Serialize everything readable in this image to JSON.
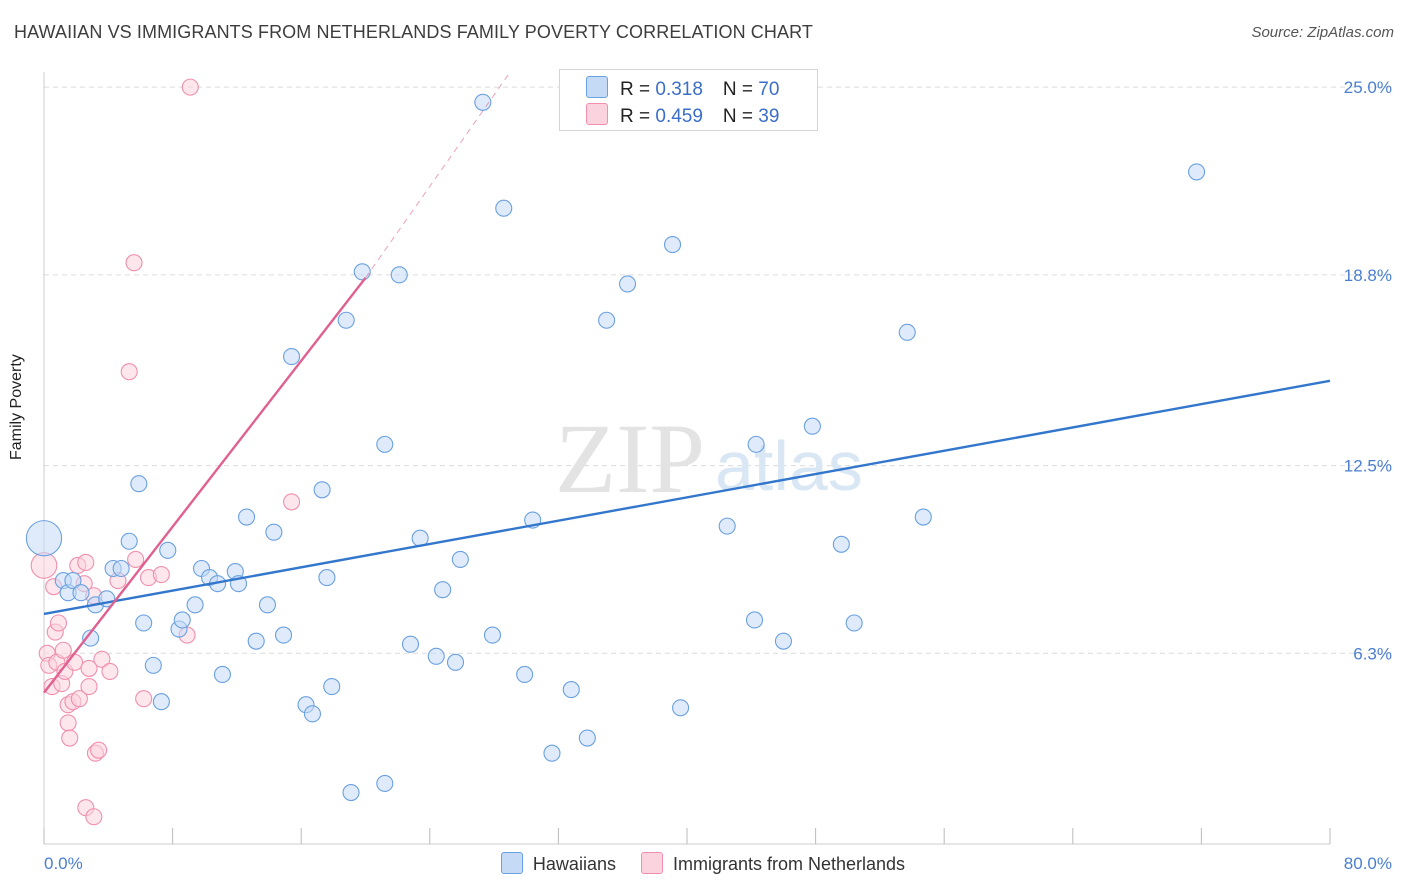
{
  "title": "HAWAIIAN VS IMMIGRANTS FROM NETHERLANDS FAMILY POVERTY CORRELATION CHART",
  "source": "Source: ZipAtlas.com",
  "watermark_zip": "ZIP",
  "watermark_atlas": "atlas",
  "colors": {
    "hawaiians": "#6aa0e0",
    "hawaiians_fill": "#c5daf5",
    "netherlands": "#f08fae",
    "netherlands_fill": "#fbd3df",
    "blue_line": "#3377cc",
    "pink_line": "#e06090",
    "tick_text": "#4a7fd0"
  },
  "legend": {
    "row1": {
      "r_label": "R = ",
      "r_value": "0.318",
      "n_label": "N = ",
      "n_value": "70"
    },
    "row2": {
      "r_label": "R = ",
      "r_value": "0.459",
      "n_label": "N = ",
      "n_value": "39"
    }
  },
  "bottom_legend": {
    "hawaiians": "Hawaiians",
    "netherlands": "Immigrants from Netherlands"
  },
  "chart_data": {
    "type": "scatter",
    "ylabel": "Family Poverty",
    "xlim": [
      0,
      80
    ],
    "ylim": [
      0,
      25.5
    ],
    "x_tick_labels": [
      "0.0%",
      "80.0%"
    ],
    "y_ticks": [
      6.3,
      12.5,
      18.8,
      25.0
    ],
    "y_tick_labels": [
      "6.3%",
      "12.5%",
      "18.8%",
      "25.0%"
    ],
    "grid": true,
    "legend_position": "top-center",
    "series": [
      {
        "name": "Hawaiians",
        "r": 0.318,
        "n": 70,
        "trend": {
          "x": [
            0,
            80
          ],
          "y": [
            7.6,
            15.3
          ]
        },
        "points": [
          [
            0.0,
            10.1,
            2.2
          ],
          [
            1.2,
            8.7,
            1
          ],
          [
            1.5,
            8.3,
            1
          ],
          [
            1.8,
            8.7,
            1
          ],
          [
            2.3,
            8.3,
            1
          ],
          [
            2.9,
            6.8,
            1
          ],
          [
            3.2,
            7.9,
            1
          ],
          [
            3.9,
            8.1,
            1
          ],
          [
            4.3,
            9.1,
            1
          ],
          [
            4.8,
            9.1,
            1
          ],
          [
            5.3,
            10.0,
            1
          ],
          [
            5.9,
            11.9,
            1
          ],
          [
            6.2,
            7.3,
            1
          ],
          [
            6.8,
            5.9,
            1
          ],
          [
            7.3,
            4.7,
            1
          ],
          [
            7.7,
            9.7,
            1
          ],
          [
            8.4,
            7.1,
            1
          ],
          [
            8.6,
            7.4,
            1
          ],
          [
            9.4,
            7.9,
            1
          ],
          [
            9.8,
            9.1,
            1
          ],
          [
            10.3,
            8.8,
            1
          ],
          [
            10.8,
            8.6,
            1
          ],
          [
            11.1,
            5.6,
            1
          ],
          [
            11.9,
            9.0,
            1
          ],
          [
            12.1,
            8.6,
            1
          ],
          [
            12.6,
            10.8,
            1
          ],
          [
            13.2,
            6.7,
            1
          ],
          [
            13.9,
            7.9,
            1
          ],
          [
            14.3,
            10.3,
            1
          ],
          [
            14.9,
            6.9,
            1
          ],
          [
            15.4,
            16.1,
            1
          ],
          [
            16.3,
            4.6,
            1
          ],
          [
            16.7,
            4.3,
            1
          ],
          [
            17.3,
            11.7,
            1
          ],
          [
            17.6,
            8.8,
            1
          ],
          [
            17.9,
            5.2,
            1
          ],
          [
            18.8,
            17.3,
            1
          ],
          [
            19.1,
            1.7,
            1
          ],
          [
            19.8,
            18.9,
            1
          ],
          [
            21.2,
            13.2,
            1
          ],
          [
            21.2,
            2.0,
            1
          ],
          [
            22.1,
            18.8,
            1
          ],
          [
            22.8,
            6.6,
            1
          ],
          [
            23.4,
            10.1,
            1
          ],
          [
            24.4,
            6.2,
            1
          ],
          [
            24.8,
            8.4,
            1
          ],
          [
            25.6,
            6.0,
            1
          ],
          [
            25.9,
            9.4,
            1
          ],
          [
            27.3,
            24.5,
            1
          ],
          [
            27.9,
            6.9,
            1
          ],
          [
            28.6,
            21.0,
            1
          ],
          [
            29.9,
            5.6,
            1
          ],
          [
            30.4,
            10.7,
            1
          ],
          [
            31.6,
            3.0,
            1
          ],
          [
            32.8,
            5.1,
            1
          ],
          [
            33.8,
            3.5,
            1
          ],
          [
            35.0,
            17.3,
            1
          ],
          [
            36.3,
            18.5,
            1
          ],
          [
            39.1,
            19.8,
            1
          ],
          [
            39.6,
            4.5,
            1
          ],
          [
            42.5,
            10.5,
            1
          ],
          [
            44.2,
            7.4,
            1
          ],
          [
            44.3,
            13.2,
            1
          ],
          [
            46.0,
            6.7,
            1
          ],
          [
            47.8,
            13.8,
            1
          ],
          [
            49.6,
            9.9,
            1
          ],
          [
            50.4,
            7.3,
            1
          ],
          [
            53.7,
            16.9,
            1
          ],
          [
            54.7,
            10.8,
            1
          ],
          [
            71.7,
            22.2,
            1
          ]
        ]
      },
      {
        "name": "Immigrants from Netherlands",
        "r": 0.459,
        "n": 39,
        "trend": {
          "x": [
            0,
            20
          ],
          "y": [
            5.0,
            18.7
          ]
        },
        "trend_extended": {
          "x": [
            20,
            29
          ],
          "y": [
            18.7,
            25.5
          ]
        },
        "points": [
          [
            0.0,
            9.2,
            1.6
          ],
          [
            0.2,
            6.3,
            1
          ],
          [
            0.3,
            5.9,
            1
          ],
          [
            0.5,
            5.2,
            1
          ],
          [
            0.6,
            8.5,
            1
          ],
          [
            0.7,
            7.0,
            1
          ],
          [
            0.8,
            6.0,
            1
          ],
          [
            0.9,
            7.3,
            1
          ],
          [
            1.1,
            5.3,
            1
          ],
          [
            1.2,
            6.4,
            1
          ],
          [
            1.3,
            5.7,
            1
          ],
          [
            1.5,
            4.6,
            1
          ],
          [
            1.5,
            4.0,
            1
          ],
          [
            1.6,
            3.5,
            1
          ],
          [
            1.8,
            4.7,
            1
          ],
          [
            1.9,
            6.0,
            1
          ],
          [
            2.1,
            9.2,
            1
          ],
          [
            2.2,
            4.8,
            1
          ],
          [
            2.5,
            8.6,
            1
          ],
          [
            2.6,
            9.3,
            1
          ],
          [
            2.6,
            1.2,
            1
          ],
          [
            2.8,
            5.2,
            1
          ],
          [
            2.8,
            5.8,
            1
          ],
          [
            3.1,
            0.9,
            1
          ],
          [
            3.1,
            8.2,
            1
          ],
          [
            3.2,
            3.0,
            1
          ],
          [
            3.4,
            3.1,
            1
          ],
          [
            3.6,
            6.1,
            1
          ],
          [
            4.1,
            5.7,
            1
          ],
          [
            4.6,
            8.7,
            1
          ],
          [
            5.3,
            15.6,
            1
          ],
          [
            5.6,
            19.2,
            1
          ],
          [
            5.7,
            9.4,
            1
          ],
          [
            6.2,
            4.8,
            1
          ],
          [
            6.5,
            8.8,
            1
          ],
          [
            7.3,
            8.9,
            1
          ],
          [
            8.9,
            6.9,
            1
          ],
          [
            9.1,
            25.0,
            1
          ],
          [
            15.4,
            11.3,
            1
          ]
        ]
      }
    ]
  }
}
